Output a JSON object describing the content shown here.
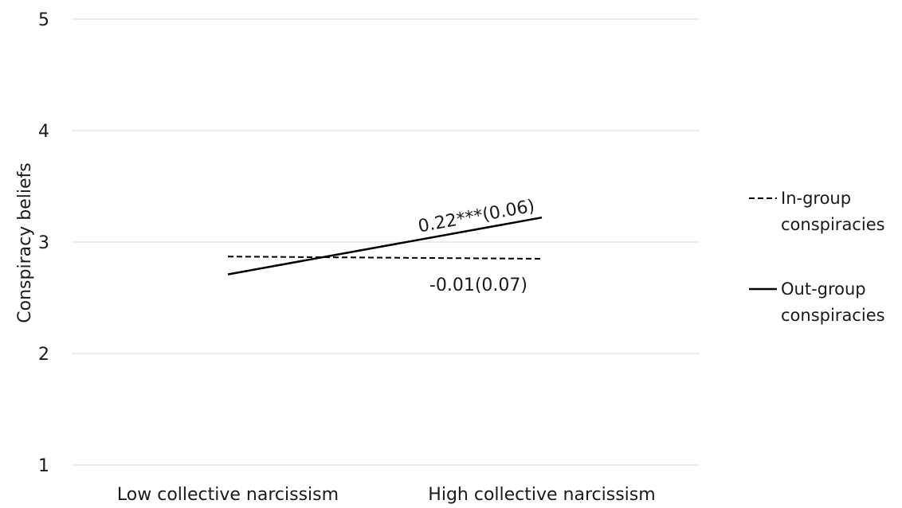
{
  "chart_data": {
    "type": "line",
    "title": "",
    "xlabel": "",
    "ylabel": "Conspiracy beliefs",
    "ylim": [
      1,
      5
    ],
    "yticks": [
      1,
      2,
      3,
      4,
      5
    ],
    "categories": [
      "Low collective narcissism",
      "High collective narcissism"
    ],
    "grid": true,
    "legend_position": "right",
    "series": [
      {
        "name": "In-group conspiracies",
        "legend_lines": [
          "In-group",
          "conspiracies"
        ],
        "values": [
          2.87,
          2.85
        ],
        "style": "dashed",
        "color": "#000000",
        "annotation": "-0.01(0.07)"
      },
      {
        "name": "Out-group conspiracies",
        "legend_lines": [
          "Out-group",
          "conspiracies"
        ],
        "values": [
          2.71,
          3.22
        ],
        "style": "solid",
        "color": "#000000",
        "annotation": "0.22***(0.06)"
      }
    ]
  }
}
